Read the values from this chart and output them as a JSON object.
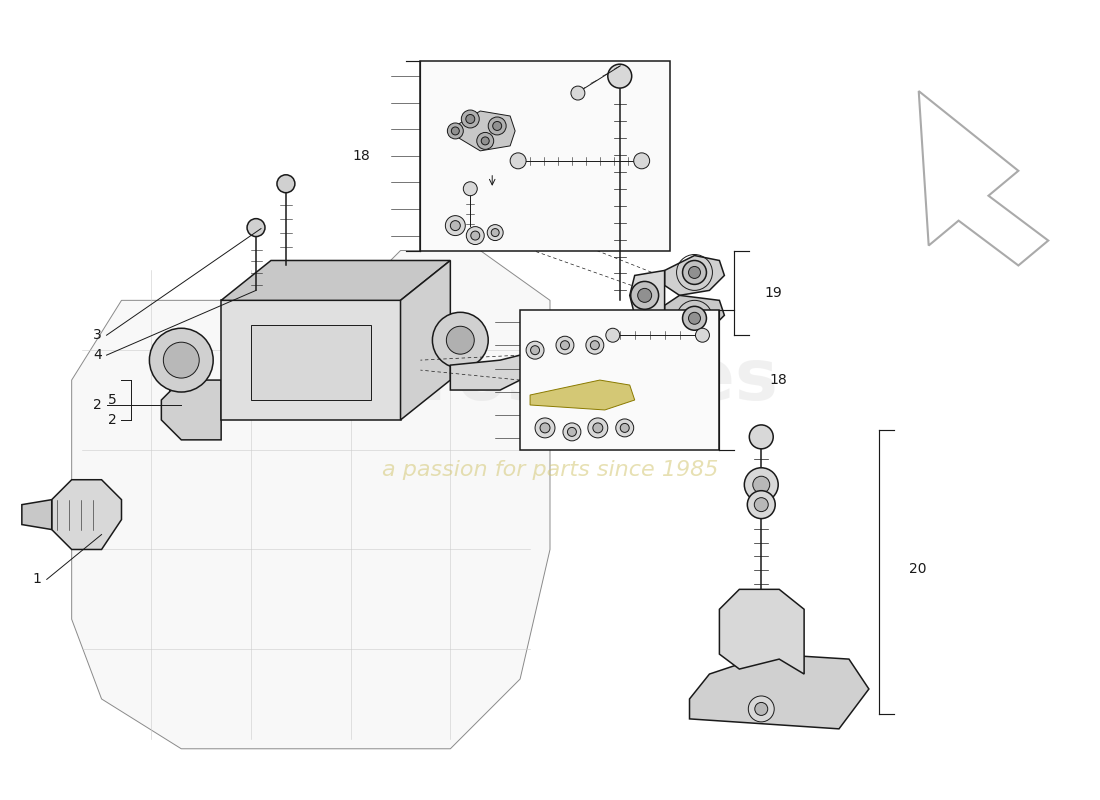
{
  "background_color": "#ffffff",
  "line_color": "#1a1a1a",
  "light_gray": "#d8d8d8",
  "mid_gray": "#b8b8b8",
  "dark_gray": "#909090",
  "yellow_part": "#d4c875",
  "watermark_color": "#c8c8c8",
  "watermark_yellow": "#d4c875",
  "lw_main": 1.1,
  "lw_thin": 0.7,
  "lw_thick": 1.5,
  "label_fontsize": 10,
  "parts": [
    "1",
    "2",
    "3",
    "4",
    "5",
    "18",
    "18",
    "19",
    "20"
  ],
  "arrow_outline_color": "#aaaaaa"
}
